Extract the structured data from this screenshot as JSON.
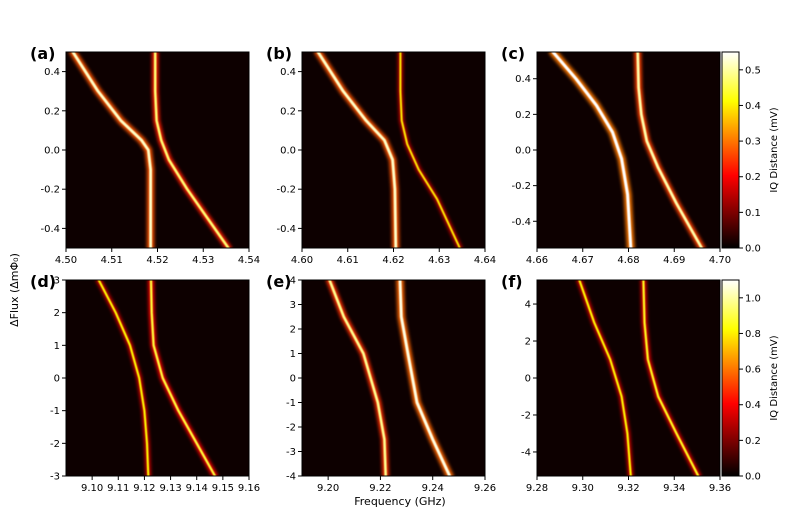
{
  "figure": {
    "xlabel": "Frequency (GHz)",
    "ylabel": "ΔFlux (ΔmΦ₀)"
  },
  "colorbars": [
    {
      "label": "IQ Distance (mV)",
      "ticks": [
        "0.0",
        "0.1",
        "0.2",
        "0.3",
        "0.4",
        "0.5"
      ],
      "range": [
        0,
        0.55
      ],
      "colormap": "hot"
    },
    {
      "label": "IQ Distance (mV)",
      "ticks": [
        "0.0",
        "0.2",
        "0.4",
        "0.6",
        "0.8",
        "1.0"
      ],
      "range": [
        0,
        1.1
      ],
      "colormap": "hot"
    }
  ],
  "chart_data": [
    {
      "type": "heatmap",
      "panel_label": "(a)",
      "xlim": [
        4.5,
        4.54
      ],
      "ylim": [
        -0.5,
        0.5
      ],
      "xticks": [
        "4.50",
        "4.51",
        "4.52",
        "4.53",
        "4.54"
      ],
      "yticks": [
        "0.4",
        "0.2",
        "0.0",
        "-0.2",
        "-0.4"
      ],
      "series": [
        {
          "points": [
            [
              4.5015,
              0.5
            ],
            [
              4.507,
              0.3
            ],
            [
              4.512,
              0.15
            ],
            [
              4.5165,
              0.05
            ],
            [
              4.518,
              0.0
            ],
            [
              4.5185,
              -0.1
            ],
            [
              4.5185,
              -0.3
            ],
            [
              4.5185,
              -0.5
            ]
          ],
          "intensity": 0.9
        },
        {
          "points": [
            [
              4.5195,
              0.5
            ],
            [
              4.5195,
              0.3
            ],
            [
              4.5198,
              0.15
            ],
            [
              4.5208,
              0.05
            ],
            [
              4.5225,
              -0.05
            ],
            [
              4.5265,
              -0.2
            ],
            [
              4.531,
              -0.35
            ],
            [
              4.5355,
              -0.5
            ]
          ],
          "intensity": 0.75
        }
      ]
    },
    {
      "type": "heatmap",
      "panel_label": "(b)",
      "xlim": [
        4.6,
        4.64
      ],
      "ylim": [
        -0.5,
        0.5
      ],
      "xticks": [
        "4.60",
        "4.61",
        "4.62",
        "4.63",
        "4.64"
      ],
      "yticks": [
        "0.4",
        "0.2",
        "0.0",
        "-0.2",
        "-0.4"
      ],
      "series": [
        {
          "points": [
            [
              4.6035,
              0.5
            ],
            [
              4.609,
              0.3
            ],
            [
              4.614,
              0.15
            ],
            [
              4.618,
              0.05
            ],
            [
              4.6198,
              -0.05
            ],
            [
              4.6203,
              -0.2
            ],
            [
              4.6205,
              -0.5
            ]
          ],
          "intensity": 0.9
        },
        {
          "points": [
            [
              4.6215,
              0.5
            ],
            [
              4.6215,
              0.3
            ],
            [
              4.6218,
              0.15
            ],
            [
              4.623,
              0.03
            ],
            [
              4.6255,
              -0.1
            ],
            [
              4.6295,
              -0.25
            ],
            [
              4.6345,
              -0.5
            ]
          ],
          "intensity": 0.5
        }
      ]
    },
    {
      "type": "heatmap",
      "panel_label": "(c)",
      "xlim": [
        4.66,
        4.7
      ],
      "ylim": [
        -0.55,
        0.55
      ],
      "xticks": [
        "4.66",
        "4.67",
        "4.68",
        "4.69",
        "4.70"
      ],
      "yticks": [
        "0.4",
        "0.2",
        "0.0",
        "-0.2",
        "-0.4"
      ],
      "series": [
        {
          "points": [
            [
              4.6635,
              0.55
            ],
            [
              4.6685,
              0.4
            ],
            [
              4.673,
              0.25
            ],
            [
              4.6765,
              0.1
            ],
            [
              4.6785,
              -0.05
            ],
            [
              4.6798,
              -0.25
            ],
            [
              4.6805,
              -0.55
            ]
          ],
          "intensity": 1.0
        },
        {
          "points": [
            [
              4.682,
              0.55
            ],
            [
              4.6822,
              0.35
            ],
            [
              4.6828,
              0.2
            ],
            [
              4.684,
              0.05
            ],
            [
              4.6865,
              -0.1
            ],
            [
              4.6905,
              -0.3
            ],
            [
              4.696,
              -0.55
            ]
          ],
          "intensity": 0.85
        }
      ]
    },
    {
      "type": "heatmap",
      "panel_label": "(d)",
      "xlim": [
        9.09,
        9.16
      ],
      "ylim": [
        -3,
        3
      ],
      "xticks": [
        "9.10",
        "9.11",
        "9.12",
        "9.13",
        "9.14",
        "9.15",
        "9.16"
      ],
      "yticks": [
        "3",
        "2",
        "1",
        "0",
        "-1",
        "-2",
        "-3"
      ],
      "series": [
        {
          "points": [
            [
              9.1025,
              3.0
            ],
            [
              9.109,
              2.0
            ],
            [
              9.1145,
              1.0
            ],
            [
              9.118,
              0.0
            ],
            [
              9.12,
              -1.0
            ],
            [
              9.121,
              -2.0
            ],
            [
              9.1215,
              -3.0
            ]
          ],
          "intensity": 0.55
        },
        {
          "points": [
            [
              9.1225,
              3.0
            ],
            [
              9.1228,
              2.0
            ],
            [
              9.1235,
              1.0
            ],
            [
              9.127,
              0.0
            ],
            [
              9.133,
              -1.0
            ],
            [
              9.14,
              -2.0
            ],
            [
              9.147,
              -3.0
            ]
          ],
          "intensity": 0.65
        }
      ]
    },
    {
      "type": "heatmap",
      "panel_label": "(e)",
      "xlim": [
        9.19,
        9.26
      ],
      "ylim": [
        -4,
        4
      ],
      "xticks": [
        "9.20",
        "9.22",
        "9.24",
        "9.26"
      ],
      "yticks": [
        "4",
        "3",
        "2",
        "1",
        "0",
        "-1",
        "-2",
        "-3",
        "-4"
      ],
      "series": [
        {
          "points": [
            [
              9.2005,
              4.0
            ],
            [
              9.206,
              2.5
            ],
            [
              9.2135,
              1.0
            ],
            [
              9.219,
              -1.0
            ],
            [
              9.2215,
              -2.5
            ],
            [
              9.222,
              -4.0
            ]
          ],
          "intensity": 0.8
        },
        {
          "points": [
            [
              9.2275,
              4.0
            ],
            [
              9.228,
              2.5
            ],
            [
              9.2305,
              1.0
            ],
            [
              9.234,
              -1.0
            ],
            [
              9.24,
              -2.5
            ],
            [
              9.2465,
              -4.0
            ]
          ],
          "intensity": 0.95
        }
      ]
    },
    {
      "type": "heatmap",
      "panel_label": "(f)",
      "xlim": [
        9.28,
        9.36
      ],
      "ylim": [
        -5.3,
        5.3
      ],
      "xticks": [
        "9.28",
        "9.30",
        "9.32",
        "9.34",
        "9.36"
      ],
      "yticks": [
        "4",
        "2",
        "0",
        "-2",
        "-4"
      ],
      "series": [
        {
          "points": [
            [
              9.2985,
              5.3
            ],
            [
              9.305,
              3.0
            ],
            [
              9.312,
              1.0
            ],
            [
              9.317,
              -1.0
            ],
            [
              9.3195,
              -3.0
            ],
            [
              9.321,
              -5.3
            ]
          ],
          "intensity": 0.55
        },
        {
          "points": [
            [
              9.3265,
              5.3
            ],
            [
              9.327,
              3.0
            ],
            [
              9.3285,
              1.0
            ],
            [
              9.333,
              -1.0
            ],
            [
              9.341,
              -3.0
            ],
            [
              9.3505,
              -5.3
            ]
          ],
          "intensity": 0.6
        }
      ]
    }
  ]
}
